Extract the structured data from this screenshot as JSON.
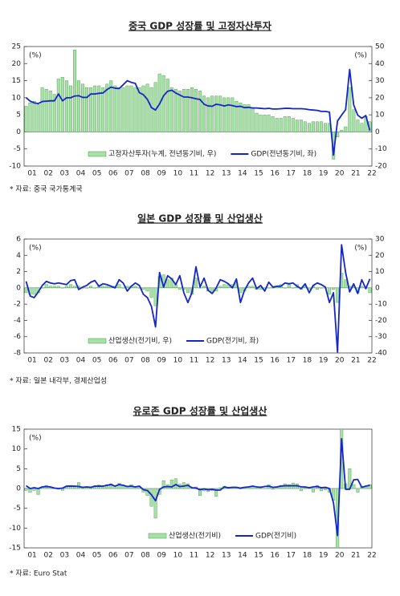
{
  "chart_data": [
    {
      "type": "combo",
      "title": "중국 GDP 성장률 및 고정자산투자",
      "source": "* 자료: 중국 국가통계국",
      "y_unit": "(%)",
      "y2_unit": "(%)",
      "categories": [
        "01",
        null,
        null,
        null,
        "02",
        null,
        null,
        null,
        "03",
        null,
        null,
        null,
        "04",
        null,
        null,
        null,
        "05",
        null,
        null,
        null,
        "06",
        null,
        null,
        null,
        "07",
        null,
        null,
        null,
        "08",
        null,
        null,
        null,
        "09",
        null,
        null,
        null,
        "10",
        null,
        null,
        null,
        "11",
        null,
        null,
        null,
        "12",
        null,
        null,
        null,
        "13",
        null,
        null,
        null,
        "14",
        null,
        null,
        null,
        "15",
        null,
        null,
        null,
        "16",
        null,
        null,
        null,
        "17",
        null,
        null,
        null,
        "18",
        null,
        null,
        null,
        "19",
        null,
        null,
        null,
        "20",
        null,
        null,
        null,
        "21",
        null,
        null,
        null,
        "22",
        null
      ],
      "ylim": [
        -10,
        25
      ],
      "yticks": [
        -10,
        -5,
        0,
        5,
        10,
        15,
        20,
        25
      ],
      "y2lim": [
        -20,
        50
      ],
      "y2ticks": [
        -20,
        -10,
        0,
        10,
        20,
        30,
        40,
        50
      ],
      "series": [
        {
          "name": "고정자산투자(누계, 전년동기비, 우)",
          "type": "bar",
          "axis": "y2",
          "color": "#a9e0a9",
          "values": [
            15,
            17,
            18,
            16,
            26,
            25,
            24,
            22,
            31,
            32,
            30,
            27,
            48,
            30,
            28,
            26,
            26,
            27,
            27,
            26,
            28,
            30,
            27,
            26,
            26,
            27,
            27,
            26,
            26,
            27,
            28,
            26,
            29,
            34,
            33,
            31,
            26,
            25,
            24,
            25,
            25,
            26,
            25,
            24,
            21,
            20,
            21,
            21,
            21,
            20,
            20,
            20,
            18,
            17,
            16,
            16,
            14,
            11,
            10,
            10,
            10,
            9,
            8,
            8,
            9,
            9,
            8,
            7,
            7,
            6,
            5,
            6,
            6,
            6,
            5,
            5,
            -16,
            -3,
            1,
            3,
            26,
            13,
            7,
            5,
            9,
            6
          ]
        },
        {
          "name": "GDP(전년동기비, 좌)",
          "type": "line",
          "color": "#1426c8",
          "values": [
            10.0,
            9.0,
            8.5,
            8.3,
            8.9,
            9.0,
            9.1,
            9.1,
            11.1,
            9.1,
            10.0,
            10.0,
            10.5,
            10.6,
            10.1,
            10.1,
            11.1,
            11.1,
            11.3,
            11.4,
            12.4,
            13.1,
            12.8,
            12.7,
            13.8,
            15.0,
            14.5,
            14.2,
            11.5,
            10.9,
            9.5,
            7.1,
            6.4,
            8.2,
            10.6,
            11.9,
            12.2,
            11.4,
            10.8,
            10.2,
            10.2,
            10.0,
            9.7,
            9.5,
            8.1,
            7.6,
            7.5,
            8.1,
            7.9,
            7.6,
            7.9,
            7.7,
            7.4,
            7.5,
            7.1,
            7.2,
            7.0,
            7.0,
            6.9,
            6.8,
            6.9,
            6.7,
            6.7,
            6.8,
            6.9,
            6.9,
            6.8,
            6.8,
            6.8,
            6.7,
            6.5,
            6.4,
            6.3,
            6.0,
            6.0,
            5.8,
            -6.8,
            3.2,
            4.9,
            6.5,
            18.3,
            7.9,
            4.9,
            4.0,
            4.8,
            0.4
          ]
        }
      ]
    },
    {
      "type": "combo",
      "title": "일본 GDP 성장률 및 산업생산",
      "source": "* 자료: 일본 내각부, 경제산업성",
      "y_unit": "(%)",
      "y2_unit": "(%)",
      "categories": [
        "01",
        null,
        null,
        null,
        "02",
        null,
        null,
        null,
        "03",
        null,
        null,
        null,
        "04",
        null,
        null,
        null,
        "05",
        null,
        null,
        null,
        "06",
        null,
        null,
        null,
        "07",
        null,
        null,
        null,
        "08",
        null,
        null,
        null,
        "09",
        null,
        null,
        null,
        "10",
        null,
        null,
        null,
        "11",
        null,
        null,
        null,
        "12",
        null,
        null,
        null,
        "13",
        null,
        null,
        null,
        "14",
        null,
        null,
        null,
        "15",
        null,
        null,
        null,
        "16",
        null,
        null,
        null,
        "17",
        null,
        null,
        null,
        "18",
        null,
        null,
        null,
        "19",
        null,
        null,
        null,
        "20",
        null,
        null,
        null,
        "21",
        null,
        null,
        null,
        "22",
        null
      ],
      "ylim": [
        -8,
        6
      ],
      "yticks": [
        -8,
        -6,
        -4,
        -2,
        0,
        2,
        4,
        6
      ],
      "y2lim": [
        -40,
        30
      ],
      "y2ticks": [
        -40,
        -30,
        -20,
        -10,
        0,
        10,
        20,
        30
      ],
      "series": [
        {
          "name": "산업생산(전기비, 우)",
          "type": "bar",
          "axis": "y2",
          "color": "#a9e0a9",
          "values": [
            -3,
            -4,
            -4,
            -3,
            0,
            2,
            1,
            1,
            1,
            0,
            1,
            2,
            1,
            1,
            0,
            0,
            1,
            0,
            1,
            1,
            1,
            1,
            1,
            2,
            0,
            1,
            1,
            1,
            0,
            -1,
            -2,
            -6,
            -11,
            7,
            8,
            5,
            6,
            2,
            -1,
            -1,
            -3,
            -4,
            6,
            0,
            1,
            -2,
            -3,
            -2,
            1,
            2,
            2,
            2,
            3,
            -3,
            -2,
            1,
            1,
            -1,
            -1,
            0,
            0,
            0,
            1,
            2,
            0,
            2,
            0,
            2,
            -1,
            1,
            -1,
            1,
            -1,
            0,
            0,
            -4,
            -1,
            -9,
            9,
            5,
            1,
            1,
            -3,
            1,
            0,
            -3
          ]
        },
        {
          "name": "GDP(전기비, 좌)",
          "type": "line",
          "color": "#1426c8",
          "values": [
            0.8,
            -1.0,
            -1.2,
            -0.5,
            0.3,
            0.8,
            0.6,
            0.5,
            0.6,
            0.5,
            0.4,
            0.9,
            1.0,
            -0.2,
            0.1,
            0.3,
            0.7,
            0.9,
            0.2,
            0.5,
            0.4,
            0.2,
            0.0,
            1.0,
            0.6,
            -0.4,
            0.2,
            0.6,
            0.3,
            -0.8,
            -1.2,
            -2.3,
            -4.8,
            1.9,
            0.1,
            1.5,
            1.1,
            0.4,
            1.5,
            -0.6,
            -1.8,
            -0.6,
            2.6,
            0.1,
            1.2,
            -0.3,
            -0.7,
            0.0,
            1.0,
            0.8,
            0.5,
            0.0,
            1.1,
            -1.8,
            -0.3,
            0.6,
            1.2,
            -0.1,
            0.3,
            -0.4,
            0.7,
            0.1,
            0.2,
            0.2,
            0.6,
            0.5,
            0.6,
            0.2,
            -0.1,
            0.5,
            -0.6,
            0.3,
            0.6,
            0.4,
            0.1,
            -1.8,
            -0.6,
            -7.9,
            5.3,
            1.9,
            -0.5,
            0.5,
            -0.7,
            1.0,
            -0.1,
            1.1
          ]
        }
      ]
    },
    {
      "type": "combo",
      "title": "유로존 GDP 성장률 및 산업생산",
      "source": "* 자료: Euro Stat",
      "y_unit": "(%)",
      "categories": [
        "01",
        null,
        null,
        null,
        "02",
        null,
        null,
        null,
        "03",
        null,
        null,
        null,
        "04",
        null,
        null,
        null,
        "05",
        null,
        null,
        null,
        "06",
        null,
        null,
        null,
        "07",
        null,
        null,
        null,
        "08",
        null,
        null,
        null,
        "09",
        null,
        null,
        null,
        "10",
        null,
        null,
        null,
        "11",
        null,
        null,
        null,
        "12",
        null,
        null,
        null,
        "13",
        null,
        null,
        null,
        "14",
        null,
        null,
        null,
        "15",
        null,
        null,
        null,
        "16",
        null,
        null,
        null,
        "17",
        null,
        null,
        null,
        "18",
        null,
        null,
        null,
        "19",
        null,
        null,
        null,
        "20",
        null,
        null,
        null,
        "21",
        null,
        null,
        null,
        "22",
        null
      ],
      "ylim": [
        -15,
        15
      ],
      "yticks": [
        -15,
        -10,
        -5,
        0,
        5,
        10,
        15
      ],
      "series": [
        {
          "name": "산업생산(전기비)",
          "type": "bar",
          "color": "#a9e0a9",
          "values": [
            -0.5,
            -1.0,
            -0.5,
            -1.5,
            0.5,
            0.8,
            0.3,
            0.2,
            -0.2,
            -0.5,
            0.6,
            0.8,
            0.5,
            1.5,
            0.2,
            0.3,
            0.2,
            0.5,
            0.9,
            0.6,
            1.0,
            1.2,
            0.8,
            1.3,
            0.9,
            0.5,
            1.0,
            0.4,
            0.3,
            -0.9,
            -1.8,
            -4.5,
            -7.5,
            -1.5,
            2.0,
            1.0,
            2.2,
            2.5,
            1.1,
            1.5,
            1.2,
            0.2,
            0.4,
            -1.8,
            -0.6,
            -0.8,
            -0.5,
            -2.0,
            0.2,
            0.6,
            0.1,
            0.3,
            0.3,
            -0.1,
            0.2,
            0.3,
            0.6,
            0.1,
            0.5,
            0.0,
            1.0,
            -0.2,
            0.3,
            0.8,
            1.2,
            1.0,
            1.4,
            1.2,
            -0.6,
            0.2,
            0.3,
            -0.9,
            0.8,
            -0.6,
            -0.3,
            -1.0,
            -3.0,
            -15.0,
            15.0,
            1.2,
            5.0,
            1.0,
            -1.0,
            0.5,
            0.4,
            1.0
          ]
        },
        {
          "name": "GDP(전기비)",
          "type": "line",
          "color": "#1426c8",
          "values": [
            0.7,
            0.0,
            0.2,
            0.0,
            0.4,
            0.5,
            0.4,
            0.1,
            0.0,
            0.1,
            0.6,
            0.6,
            0.6,
            0.5,
            0.3,
            0.4,
            0.3,
            0.6,
            0.6,
            0.6,
            0.8,
            1.0,
            0.6,
            1.0,
            0.8,
            0.5,
            0.6,
            0.4,
            0.6,
            -0.3,
            -0.5,
            -1.6,
            -3.1,
            -0.2,
            0.4,
            0.5,
            0.4,
            1.0,
            0.5,
            0.6,
            0.8,
            0.2,
            0.1,
            -0.3,
            -0.1,
            -0.3,
            -0.2,
            -0.4,
            -0.4,
            0.4,
            0.2,
            0.3,
            0.3,
            0.1,
            0.3,
            0.4,
            0.6,
            0.4,
            0.3,
            0.5,
            0.6,
            0.3,
            0.4,
            0.6,
            0.7,
            0.7,
            0.7,
            0.7,
            0.4,
            0.4,
            0.2,
            0.4,
            0.5,
            0.2,
            0.3,
            0.0,
            -3.6,
            -11.9,
            12.6,
            -0.2,
            -0.2,
            2.2,
            2.3,
            0.3,
            0.6,
            0.8
          ]
        }
      ]
    }
  ]
}
